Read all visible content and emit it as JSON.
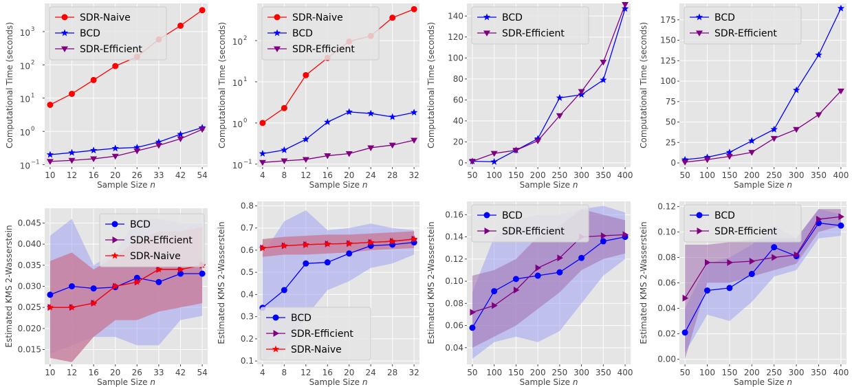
{
  "colors": {
    "background": "#E5E5E5",
    "grid": "#FFFFFF",
    "sdr_naive": "#FF0000",
    "bcd": "#0000FF",
    "sdr_efficient": "#800080",
    "bcd_band": "#A3A3F3",
    "sdr_efficient_band": "#A070B0",
    "sdr_naive_band": "#D87F8F"
  },
  "chart_data": [
    {
      "type": "line",
      "yscale": "log",
      "xlabel": "Sample Size n",
      "ylabel": "Computational Time (seconds)",
      "x": [
        10,
        12,
        16,
        20,
        26,
        33,
        42,
        54
      ],
      "xticks": [
        "10",
        "12",
        "16",
        "20",
        "26",
        "33",
        "42",
        "54"
      ],
      "ylim": [
        0.085,
        7000
      ],
      "yticks": [
        0.1,
        1,
        10,
        100,
        1000
      ],
      "ytick_labels": [
        "10",
        "10",
        "10",
        "10",
        "10"
      ],
      "ytick_exponents": [
        "−1",
        "0",
        "1",
        "2",
        "3"
      ],
      "grid": true,
      "legend": "upper-left",
      "series": [
        {
          "name": "SDR-Naive",
          "color": "#FF0000",
          "marker": "circle",
          "values": [
            6.3,
            13.5,
            35,
            92,
            175,
            580,
            1500,
            4400
          ]
        },
        {
          "name": "BCD",
          "color": "#0000FF",
          "marker": "star",
          "values": [
            0.2,
            0.23,
            0.27,
            0.31,
            0.33,
            0.48,
            0.82,
            1.3
          ]
        },
        {
          "name": "SDR-Efficient",
          "color": "#800080",
          "marker": "triangle-down",
          "values": [
            0.125,
            0.135,
            0.15,
            0.18,
            0.26,
            0.38,
            0.6,
            1.15
          ]
        }
      ]
    },
    {
      "type": "line",
      "yscale": "log",
      "xlabel": "Sample Size n",
      "ylabel": "Computational Time (seconds)",
      "x": [
        4,
        8,
        12,
        16,
        20,
        24,
        28,
        32
      ],
      "xticks": [
        "4",
        "8",
        "12",
        "16",
        "20",
        "24",
        "28",
        "32"
      ],
      "ylim": [
        0.085,
        800
      ],
      "yticks": [
        0.1,
        1,
        10,
        100
      ],
      "ytick_labels": [
        "10",
        "10",
        "10",
        "10"
      ],
      "ytick_exponents": [
        "−1",
        "0",
        "1",
        "2"
      ],
      "grid": true,
      "legend": "upper-left",
      "series": [
        {
          "name": "SDR-Naive",
          "color": "#FF0000",
          "marker": "circle",
          "values": [
            1.0,
            2.3,
            14.5,
            38,
            95,
            130,
            360,
            580
          ]
        },
        {
          "name": "BCD",
          "color": "#0000FF",
          "marker": "star",
          "values": [
            0.18,
            0.22,
            0.4,
            1.05,
            1.85,
            1.7,
            1.4,
            1.8
          ]
        },
        {
          "name": "SDR-Efficient",
          "color": "#800080",
          "marker": "triangle-down",
          "values": [
            0.11,
            0.12,
            0.13,
            0.16,
            0.18,
            0.25,
            0.29,
            0.38
          ]
        }
      ]
    },
    {
      "type": "line",
      "xlabel": "Sample Size n",
      "ylabel": "Computational Time (seconds)",
      "x": [
        50,
        100,
        150,
        200,
        250,
        300,
        350,
        400
      ],
      "xticks": [
        "50",
        "100",
        "150",
        "200",
        "250",
        "300",
        "350",
        "400"
      ],
      "ylim": [
        -4,
        152
      ],
      "yticks": [
        0,
        20,
        40,
        60,
        80,
        100,
        120,
        140
      ],
      "ytick_labels": [
        "0",
        "20",
        "40",
        "60",
        "80",
        "100",
        "120",
        "140"
      ],
      "grid": true,
      "legend": "upper-left",
      "series": [
        {
          "name": "BCD",
          "color": "#0000FF",
          "marker": "star",
          "values": [
            1.5,
            1,
            12,
            23,
            62,
            65,
            79,
            147
          ]
        },
        {
          "name": "SDR-Efficient",
          "color": "#800080",
          "marker": "triangle-down",
          "values": [
            1.5,
            9,
            12,
            21,
            45,
            68,
            96,
            151
          ]
        }
      ]
    },
    {
      "type": "line",
      "xlabel": "Sample Size n",
      "ylabel": "Computational Time (seconds)",
      "x": [
        50,
        100,
        150,
        200,
        250,
        300,
        350,
        400
      ],
      "xticks": [
        "50",
        "100",
        "150",
        "200",
        "250",
        "300",
        "350",
        "400"
      ],
      "ylim": [
        -5,
        195
      ],
      "yticks": [
        0,
        25,
        50,
        75,
        100,
        125,
        150,
        175
      ],
      "ytick_labels": [
        "0",
        "25",
        "50",
        "75",
        "100",
        "125",
        "150",
        "175"
      ],
      "grid": true,
      "legend": "upper-left",
      "series": [
        {
          "name": "BCD",
          "color": "#0000FF",
          "marker": "star",
          "values": [
            4,
            7,
            13,
            27,
            41,
            89,
            132,
            189
          ]
        },
        {
          "name": "SDR-Efficient",
          "color": "#800080",
          "marker": "triangle-down",
          "values": [
            1,
            4,
            8,
            13,
            30,
            41,
            59,
            88
          ]
        }
      ]
    },
    {
      "type": "line",
      "xlabel": "Sample Size n",
      "ylabel": "Estimated KMS 2-Wasserstein",
      "x": [
        10,
        12,
        16,
        20,
        26,
        33,
        42,
        54
      ],
      "xticks": [
        "10",
        "12",
        "16",
        "20",
        "26",
        "33",
        "42",
        "54"
      ],
      "ylim": [
        0.0115,
        0.0485
      ],
      "yticks": [
        0.015,
        0.02,
        0.025,
        0.03,
        0.035,
        0.04,
        0.045
      ],
      "ytick_labels": [
        "0.015",
        "0.020",
        "0.025",
        "0.030",
        "0.035",
        "0.040",
        "0.045"
      ],
      "grid": true,
      "legend": "upper-right",
      "series": [
        {
          "name": "BCD",
          "color": "#0000FF",
          "marker": "circle",
          "values": [
            0.028,
            0.03,
            0.0295,
            0.0298,
            0.032,
            0.031,
            0.033,
            0.033
          ],
          "band_lower": [
            0.014,
            0.016,
            0.018,
            0.018,
            0.016,
            0.016,
            0.022,
            0.023
          ],
          "band_upper": [
            0.042,
            0.046,
            0.035,
            0.038,
            0.046,
            0.046,
            0.045,
            0.045
          ]
        },
        {
          "name": "SDR-Efficient",
          "color": "#800080",
          "marker": "triangle-right",
          "values": [
            0.025,
            0.025,
            0.026,
            0.03,
            0.031,
            0.034,
            0.034,
            0.035
          ],
          "band_lower": [
            0.013,
            0.012,
            0.018,
            0.022,
            0.022,
            0.024,
            0.025,
            0.026
          ],
          "band_upper": [
            0.036,
            0.038,
            0.034,
            0.037,
            0.041,
            0.043,
            0.043,
            0.044
          ]
        },
        {
          "name": "SDR-Naive",
          "color": "#FF0000",
          "marker": "star",
          "values": [
            0.025,
            0.025,
            0.026,
            0.03,
            0.031,
            0.034,
            0.034,
            0.035
          ],
          "band_lower": [
            0.013,
            0.012,
            0.018,
            0.022,
            0.022,
            0.024,
            0.025,
            0.026
          ],
          "band_upper": [
            0.036,
            0.038,
            0.034,
            0.037,
            0.041,
            0.043,
            0.043,
            0.044
          ]
        }
      ]
    },
    {
      "type": "line",
      "xlabel": "Sample Size n",
      "ylabel": "Estimated KMS 2-Wasserstein",
      "x": [
        4,
        8,
        12,
        16,
        20,
        24,
        28,
        32
      ],
      "xticks": [
        "4",
        "8",
        "12",
        "16",
        "20",
        "24",
        "28",
        "32"
      ],
      "ylim": [
        0.085,
        0.82
      ],
      "yticks": [
        0.1,
        0.2,
        0.3,
        0.4,
        0.5,
        0.6,
        0.7,
        0.8
      ],
      "ytick_labels": [
        "0.1",
        "0.2",
        "0.3",
        "0.4",
        "0.5",
        "0.6",
        "0.7",
        "0.8"
      ],
      "grid": true,
      "legend": "lower-left",
      "series": [
        {
          "name": "BCD",
          "color": "#0000FF",
          "marker": "circle",
          "values": [
            0.34,
            0.42,
            0.54,
            0.545,
            0.585,
            0.62,
            0.625,
            0.635
          ],
          "band_lower": [
            0.1,
            0.15,
            0.3,
            0.42,
            0.46,
            0.52,
            0.54,
            0.58
          ],
          "band_upper": [
            0.58,
            0.73,
            0.78,
            0.69,
            0.7,
            0.72,
            0.7,
            0.69
          ]
        },
        {
          "name": "SDR-Efficient",
          "color": "#800080",
          "marker": "triangle-right",
          "values": [
            0.61,
            0.62,
            0.625,
            0.628,
            0.63,
            0.635,
            0.64,
            0.65
          ],
          "band_lower": [
            0.57,
            0.58,
            0.58,
            0.585,
            0.59,
            0.6,
            0.605,
            0.61
          ],
          "band_upper": [
            0.65,
            0.66,
            0.665,
            0.67,
            0.67,
            0.675,
            0.68,
            0.685
          ]
        },
        {
          "name": "SDR-Naive",
          "color": "#FF0000",
          "marker": "star",
          "values": [
            0.61,
            0.62,
            0.625,
            0.628,
            0.63,
            0.635,
            0.64,
            0.65
          ],
          "band_lower": [
            0.57,
            0.58,
            0.58,
            0.585,
            0.59,
            0.6,
            0.605,
            0.61
          ],
          "band_upper": [
            0.65,
            0.66,
            0.665,
            0.67,
            0.67,
            0.675,
            0.68,
            0.685
          ]
        }
      ]
    },
    {
      "type": "line",
      "xlabel": "Sample Size n",
      "ylabel": "Estimated KMS 2-Wasserstein",
      "x": [
        50,
        100,
        150,
        200,
        250,
        300,
        350,
        400
      ],
      "xticks": [
        "50",
        "100",
        "150",
        "200",
        "250",
        "300",
        "350",
        "400"
      ],
      "ylim": [
        0.025,
        0.172
      ],
      "yticks": [
        0.04,
        0.06,
        0.08,
        0.1,
        0.12,
        0.14,
        0.16
      ],
      "ytick_labels": [
        "0.04",
        "0.06",
        "0.08",
        "0.10",
        "0.12",
        "0.14",
        "0.16"
      ],
      "grid": true,
      "legend": "upper-left",
      "series": [
        {
          "name": "BCD",
          "color": "#0000FF",
          "marker": "circle",
          "values": [
            0.058,
            0.091,
            0.102,
            0.105,
            0.108,
            0.121,
            0.136,
            0.14
          ],
          "band_lower": [
            0.03,
            0.045,
            0.05,
            0.045,
            0.055,
            0.08,
            0.105,
            0.12
          ],
          "band_upper": [
            0.09,
            0.14,
            0.155,
            0.16,
            0.16,
            0.165,
            0.168,
            0.162
          ]
        },
        {
          "name": "SDR-Efficient",
          "color": "#800080",
          "marker": "triangle-right",
          "values": [
            0.072,
            0.078,
            0.092,
            0.112,
            0.121,
            0.14,
            0.141,
            0.142
          ],
          "band_lower": [
            0.04,
            0.05,
            0.06,
            0.075,
            0.09,
            0.11,
            0.12,
            0.125
          ],
          "band_upper": [
            0.105,
            0.11,
            0.12,
            0.14,
            0.15,
            0.165,
            0.16,
            0.155
          ]
        }
      ]
    },
    {
      "type": "line",
      "xlabel": "Sample Size n",
      "ylabel": "Estimated KMS 2-Wasserstein",
      "x": [
        50,
        100,
        150,
        200,
        250,
        300,
        350,
        400
      ],
      "xticks": [
        "50",
        "100",
        "150",
        "200",
        "250",
        "300",
        "350",
        "400"
      ],
      "ylim": [
        -0.004,
        0.124
      ],
      "yticks": [
        0,
        0.02,
        0.04,
        0.06,
        0.08,
        0.1,
        0.12
      ],
      "ytick_labels": [
        "0.00",
        "0.02",
        "0.04",
        "0.06",
        "0.08",
        "0.10",
        "0.12"
      ],
      "grid": true,
      "legend": "upper-left",
      "series": [
        {
          "name": "BCD",
          "color": "#0000FF",
          "marker": "circle",
          "values": [
            0.021,
            0.054,
            0.056,
            0.067,
            0.088,
            0.081,
            0.107,
            0.105
          ],
          "band_lower": [
            0.005,
            0.035,
            0.03,
            0.045,
            0.065,
            0.07,
            0.095,
            0.097
          ],
          "band_upper": [
            0.04,
            0.075,
            0.08,
            0.09,
            0.105,
            0.095,
            0.118,
            0.114
          ]
        },
        {
          "name": "SDR-Efficient",
          "color": "#800080",
          "marker": "triangle-right",
          "values": [
            0.048,
            0.076,
            0.076,
            0.077,
            0.08,
            0.082,
            0.11,
            0.112
          ],
          "band_lower": [
            0.0,
            0.06,
            0.06,
            0.065,
            0.07,
            0.075,
            0.1,
            0.105
          ],
          "band_upper": [
            0.09,
            0.09,
            0.092,
            0.094,
            0.095,
            0.095,
            0.118,
            0.118
          ]
        }
      ]
    }
  ]
}
